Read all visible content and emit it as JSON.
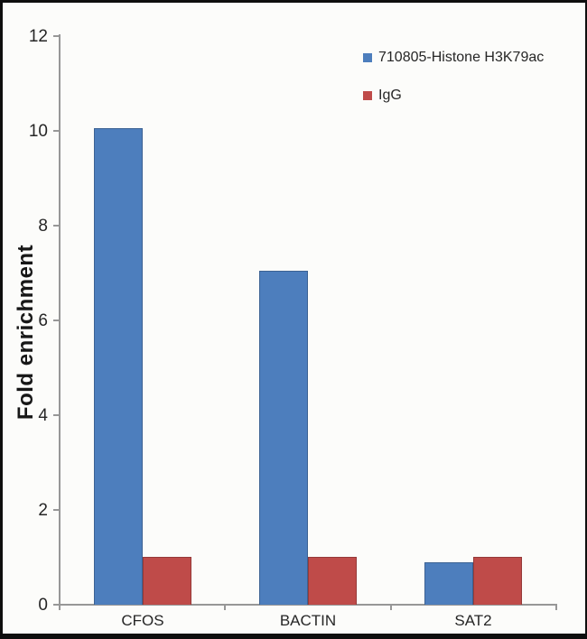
{
  "chart_data": {
    "type": "bar",
    "categories": [
      "CFOS",
      "BACTIN",
      "SAT2"
    ],
    "series": [
      {
        "name": "710805-Histone H3K79ac",
        "color": "#4d7ebd",
        "values": [
          10.05,
          7.05,
          0.9
        ]
      },
      {
        "name": "IgG",
        "color": "#bf4b49",
        "values": [
          1.0,
          1.0,
          1.0
        ]
      }
    ],
    "title": "",
    "xlabel": "",
    "ylabel": "Fold enrichment",
    "ylim": [
      0,
      12
    ],
    "ytick_step": 2,
    "ytick_labels": [
      "0",
      "2",
      "4",
      "6",
      "8",
      "10",
      "12"
    ],
    "grid": false,
    "legend_position": "top-right"
  },
  "colors": {
    "series_blue": "#4d7ebd",
    "series_red": "#bf4b49",
    "axis": "#979797",
    "text": "#262626",
    "background": "#fcfcfa",
    "frame": "#0e0e0e"
  }
}
